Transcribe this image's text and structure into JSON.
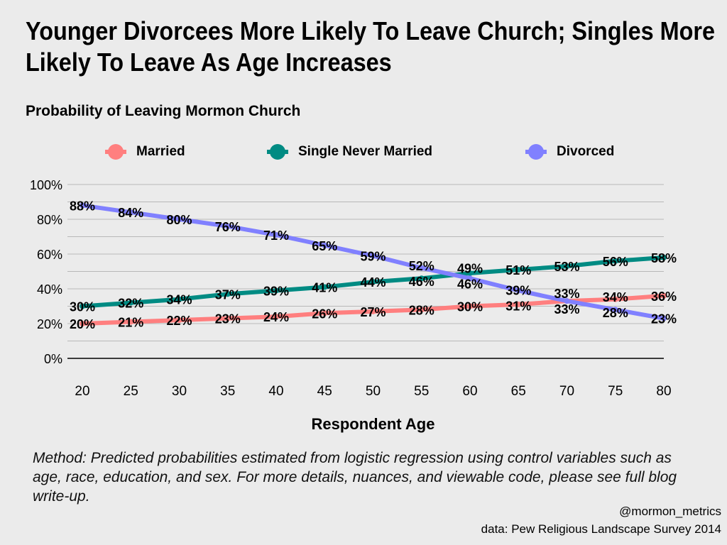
{
  "chart_data": {
    "type": "line",
    "title": "Younger Divorcees More Likely To Leave Church; Singles More Likely To Leave As Age Increases",
    "subtitle": "Probability of Leaving Mormon Church",
    "xlabel": "Respondent Age",
    "ylabel": "",
    "x": [
      20,
      25,
      30,
      35,
      40,
      45,
      50,
      55,
      60,
      65,
      70,
      75,
      80
    ],
    "ylim": [
      0,
      100
    ],
    "yticks": [
      "0%",
      "20%",
      "40%",
      "60%",
      "80%",
      "100%"
    ],
    "grid": true,
    "legend": "top",
    "series": [
      {
        "name": "Married",
        "color": "#ff7f7f",
        "values": [
          20,
          21,
          22,
          23,
          24,
          26,
          27,
          28,
          30,
          31,
          33,
          34,
          36
        ]
      },
      {
        "name": "Single Never Married",
        "color": "#008b83",
        "values": [
          30,
          32,
          34,
          37,
          39,
          41,
          44,
          46,
          49,
          51,
          53,
          56,
          58
        ]
      },
      {
        "name": "Divorced",
        "color": "#8080ff",
        "values": [
          88,
          84,
          80,
          76,
          71,
          65,
          59,
          52,
          46,
          39,
          33,
          28,
          23
        ]
      }
    ]
  },
  "method": "Method: Predicted probabilities estimated from logistic regression using control variables such as age, race, education, and sex. For more details, nuances, and viewable code, please see full blog write-up.",
  "credit": "@mormon_metrics",
  "source": "data: Pew Religious Landscape Survey 2014"
}
